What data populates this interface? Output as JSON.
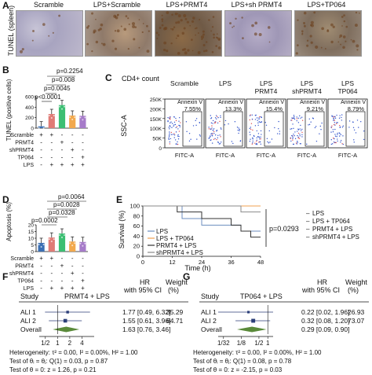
{
  "panels": {
    "A": "A",
    "B": "B",
    "C": "C",
    "D": "D",
    "E": "E",
    "F": "F",
    "G": "G"
  },
  "panelA": {
    "row_label": "TUNEL (spleen)",
    "columns": [
      "Scramble",
      "LPS+Scramble",
      "LPS+PRMT4",
      "LPS+sh PRMT4",
      "LPS+TP064"
    ]
  },
  "panelB": {
    "ylabel": "TUNEL (positive cells)",
    "pvals": [
      "p=0.2254",
      "p=0.008",
      "p=0.0045",
      "p<0.0001"
    ],
    "row_labels": [
      "Scramble",
      "PRMT4",
      "shPRMT4",
      "TP064",
      "LPS"
    ],
    "signs": [
      [
        "+",
        "+",
        "-",
        "-",
        "-"
      ],
      [
        "-",
        "-",
        "+",
        "-",
        "-"
      ],
      [
        "-",
        "-",
        "-",
        "+",
        "-"
      ],
      [
        "-",
        "-",
        "-",
        "-",
        "+"
      ],
      [
        "-",
        "+",
        "+",
        "+",
        "+"
      ]
    ],
    "yticks": [
      "0",
      "200",
      "400",
      "600"
    ]
  },
  "panelC": {
    "title": "CD4+ count",
    "ylabel": "SSC-A",
    "yticks": [
      "250K",
      "200K",
      "150K",
      "100K",
      "50K",
      "0"
    ],
    "xlabel": "FITC-A",
    "gate_label": "Annexin V",
    "headers": [
      "Scramble",
      "LPS",
      "LPS PRMT4",
      "LPS shPRMT4",
      "LPS TP064"
    ],
    "percents": [
      "7.55%",
      "13.3%",
      "15.4%",
      "9.21%",
      "8.79%"
    ]
  },
  "panelD": {
    "ylabel": "Apoptosis (%)",
    "pvals": [
      "p=0.0064",
      "p=0.0028",
      "p=0.0328",
      "p=0.0002"
    ],
    "row_labels": [
      "Scramble",
      "PRMT4",
      "shPRMT4",
      "TP064",
      "LPS"
    ],
    "signs": [
      [
        "+",
        "+",
        "-",
        "-",
        "-"
      ],
      [
        "-",
        "-",
        "+",
        "-",
        "-"
      ],
      [
        "-",
        "-",
        "-",
        "+",
        "-"
      ],
      [
        "-",
        "-",
        "-",
        "-",
        "+"
      ],
      [
        "-",
        "+",
        "+",
        "+",
        "+"
      ]
    ],
    "yticks": [
      "0",
      "5",
      "10",
      "15",
      "20"
    ]
  },
  "panelE": {
    "ylabel": "Survival (%)",
    "xlabel": "Time (h)",
    "pval": "p=0.0293",
    "legend_left": [
      "LPS",
      "LPS + TP064",
      "PRMT4 + LPS",
      "shPRMT4 + LPS"
    ],
    "legend_right": [
      "LPS",
      "LPS + TP064",
      "PRMT4 + LPS",
      "shPRMT4 + LPS"
    ]
  },
  "panelF": {
    "study_h": "Study",
    "group_h": "PRMT4 + LPS",
    "hr_h": "HR",
    "ci_h": "with 95% CI",
    "w_h": "Weight",
    "w_u": "(%)",
    "rows": [
      {
        "study": "ALI 1",
        "hr": "1.77 [0.49, 6.32]",
        "w": "35.29"
      },
      {
        "study": "ALI 2",
        "hr": "1.55 [0.61, 3.96]",
        "w": "64.71"
      },
      {
        "study": "Overall",
        "hr": "1.63 [0.76, 3.46]",
        "w": ""
      }
    ],
    "xticks": [
      "1/2",
      "1",
      "2",
      "4"
    ],
    "het": "Heterogeneity: τ² = 0.00, I² = 0.00%, H² = 1.00",
    "t1": "Test of θᵢ = θⱼ: Q(1) = 0.03, p = 0.87",
    "t2": "Test of θ = 0: z = 1.26, p = 0.21"
  },
  "panelG": {
    "study_h": "Study",
    "group_h": "TP064 + LPS",
    "hr_h": "HR",
    "ci_h": "with 95% CI",
    "w_h": "Weight",
    "w_u": "(%)",
    "rows": [
      {
        "study": "ALI 1",
        "hr": "0.22 [0.02, 1.96]",
        "w": "26.93"
      },
      {
        "study": "ALI 2",
        "hr": "0.32 [0.08, 1.20]",
        "w": "73.07"
      },
      {
        "study": "Overall",
        "hr": "0.29 [0.09, 0.90]",
        "w": ""
      }
    ],
    "xticks": [
      "1/32",
      "1/8",
      "1/2",
      "1"
    ],
    "het": "Heterogeneity: τ² = 0.00, I² = 0.00%, H² = 1.00",
    "t1": "Test of θᵢ = θⱼ: Q(1) = 0.08, p = 0.78",
    "t2": "Test of θ = 0: z = -2.15, p = 0.03"
  },
  "colors": {
    "grey": "#3b6fb3",
    "red": "#d9625e",
    "green": "#35b06a",
    "purple": "#9b6ec2",
    "orange": "#f0a050",
    "navy": "#2b3e78",
    "ltblue": "#6fa8dc"
  },
  "chart_data": [
    {
      "type": "bar",
      "panel": "B",
      "categories": [
        "Scramble",
        "LPS+Scramble",
        "PRMT4+LPS",
        "shPRMT4+LPS",
        "TP064+LPS"
      ],
      "values": [
        35,
        270,
        440,
        240,
        235
      ],
      "ylim": [
        0,
        600
      ]
    },
    {
      "type": "bar",
      "panel": "D",
      "categories": [
        "Scramble",
        "LPS+Scramble",
        "PRMT4+LPS",
        "shPRMT4+LPS",
        "TP064+LPS"
      ],
      "values": [
        6.5,
        10.5,
        13.5,
        7.5,
        7.2
      ],
      "ylim": [
        0,
        20
      ]
    },
    {
      "type": "line",
      "panel": "E",
      "xlim": [
        0,
        48
      ],
      "ylim": [
        0,
        100
      ],
      "xticks": [
        0,
        12,
        24,
        36,
        48
      ],
      "yticks": [
        0,
        20,
        40,
        60,
        80,
        100
      ],
      "series": [
        {
          "name": "LPS",
          "points": [
            [
              0,
              100
            ],
            [
              12,
              100
            ],
            [
              16,
              75
            ],
            [
              20,
              75
            ],
            [
              24,
              62
            ],
            [
              36,
              62
            ],
            [
              40,
              50
            ],
            [
              48,
              50
            ]
          ]
        },
        {
          "name": "LPS + TP064",
          "points": [
            [
              0,
              100
            ],
            [
              48,
              100
            ]
          ]
        },
        {
          "name": "PRMT4 + LPS",
          "points": [
            [
              0,
              100
            ],
            [
              12,
              100
            ],
            [
              14,
              88
            ],
            [
              20,
              88
            ],
            [
              24,
              75
            ],
            [
              30,
              75
            ],
            [
              36,
              62
            ],
            [
              40,
              50
            ],
            [
              44,
              38
            ],
            [
              48,
              38
            ]
          ]
        },
        {
          "name": "shPRMT4 + LPS",
          "points": [
            [
              0,
              100
            ],
            [
              36,
              100
            ],
            [
              40,
              88
            ],
            [
              48,
              88
            ]
          ]
        }
      ]
    },
    {
      "type": "forest",
      "panel": "F",
      "studies": [
        "ALI 1",
        "ALI 2",
        "Overall"
      ],
      "hr": [
        1.77,
        1.55,
        1.63
      ],
      "lo": [
        0.49,
        0.61,
        0.76
      ],
      "hi": [
        6.32,
        3.96,
        3.46
      ],
      "weight": [
        35.29,
        64.71,
        null
      ]
    },
    {
      "type": "forest",
      "panel": "G",
      "studies": [
        "ALI 1",
        "ALI 2",
        "Overall"
      ],
      "hr": [
        0.22,
        0.32,
        0.29
      ],
      "lo": [
        0.02,
        0.08,
        0.09
      ],
      "hi": [
        1.96,
        1.2,
        0.9
      ],
      "weight": [
        26.93,
        73.07,
        null
      ]
    }
  ]
}
